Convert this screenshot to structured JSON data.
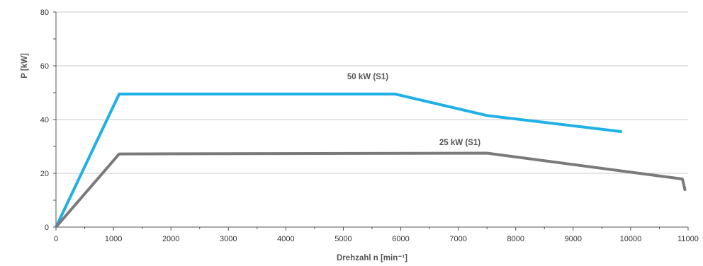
{
  "chart_data": {
    "type": "line",
    "xlabel": "Drehzahl n [min⁻¹]",
    "ylabel": "P [kW]",
    "xlim": [
      0,
      11000
    ],
    "ylim": [
      0,
      80
    ],
    "xticks": [
      "0",
      "1000",
      "2000",
      "3000",
      "4000",
      "5000",
      "6000",
      "7000",
      "8000",
      "9000",
      "10000",
      "11000"
    ],
    "yticks": [
      "0",
      "20",
      "40",
      "60",
      "80"
    ],
    "grid": "horizontal",
    "series": [
      {
        "name": "50 kW (S1)",
        "color": "#1fb0e6",
        "points": [
          [
            0,
            0
          ],
          [
            1100,
            49.5
          ],
          [
            5900,
            49.5
          ],
          [
            7500,
            41.5
          ],
          [
            9850,
            35.5
          ]
        ]
      },
      {
        "name": "25 kW (S1)",
        "color": "#7a7a7c",
        "points": [
          [
            0,
            0
          ],
          [
            1100,
            27.2
          ],
          [
            7500,
            27.5
          ],
          [
            10900,
            17.9
          ],
          [
            10950,
            13.5
          ]
        ]
      }
    ]
  }
}
